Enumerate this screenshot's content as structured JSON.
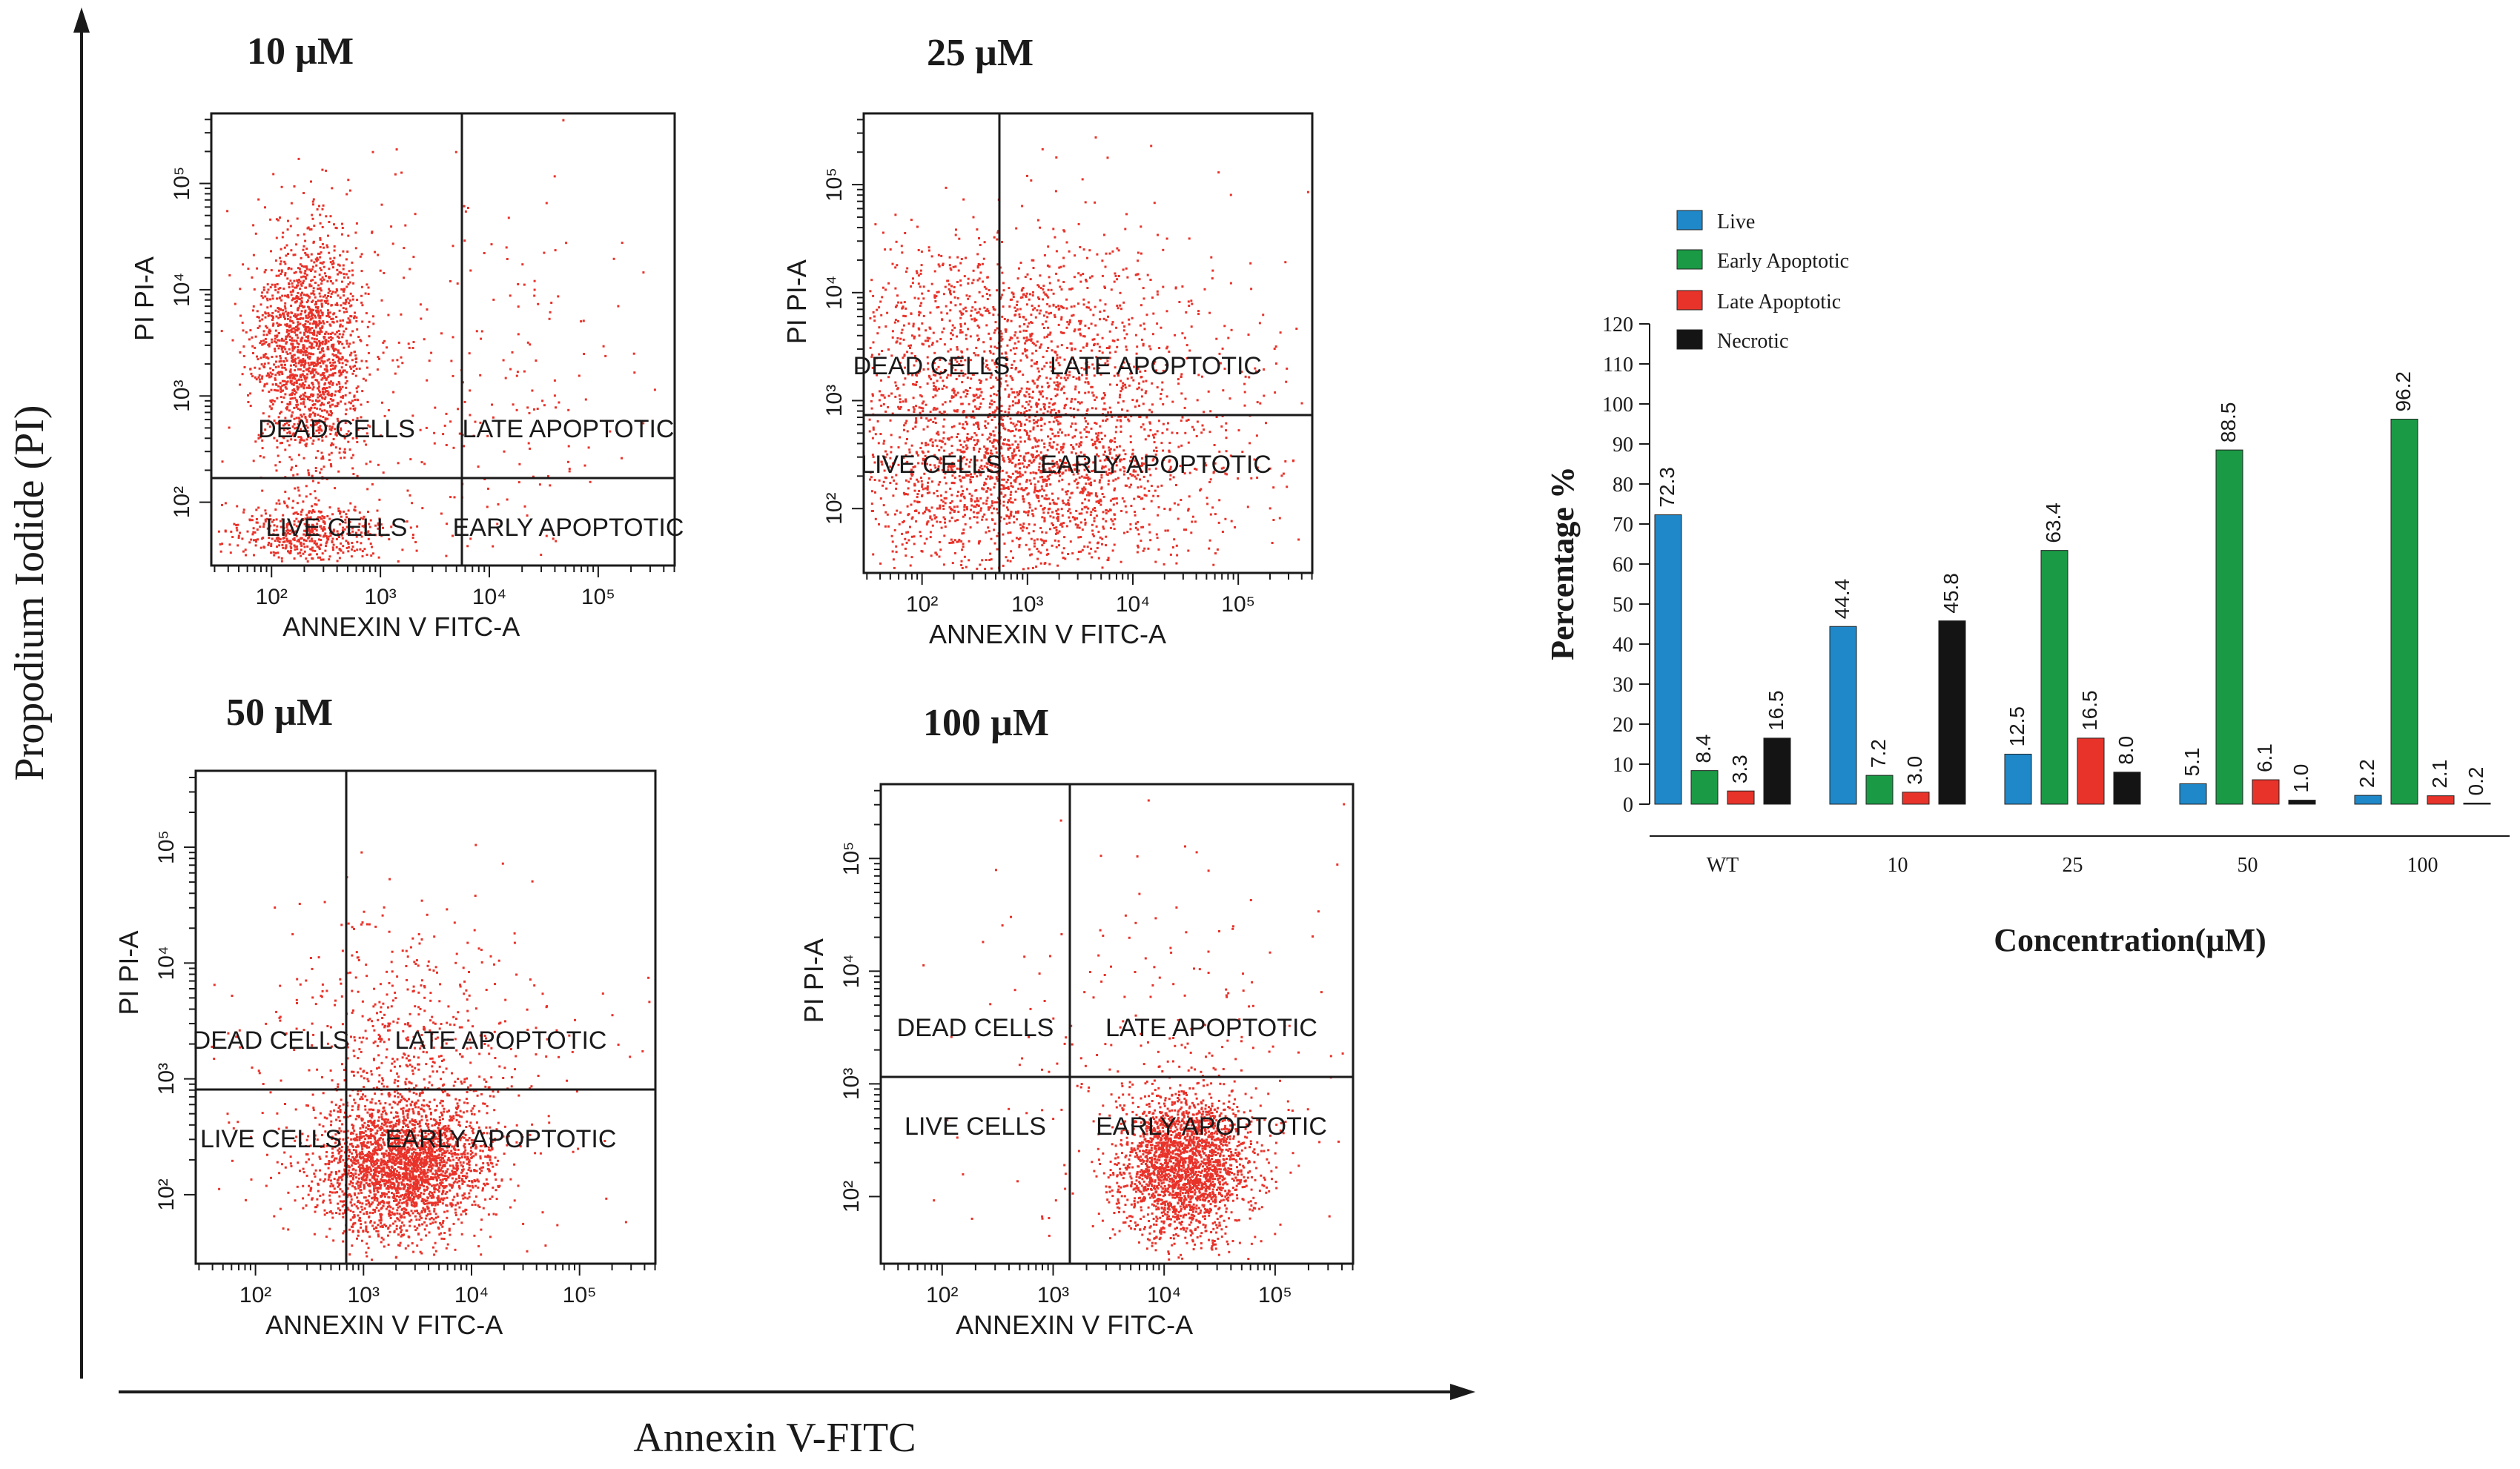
{
  "figure": {
    "y_axis_title": "Propodium Iodide (PI)",
    "x_axis_title": "Annexin V-FITC",
    "colors": {
      "dot": "#e8332a",
      "line": "#1a1a1a",
      "live": "#1f88c9",
      "early": "#1a9a45",
      "late": "#e8332a",
      "necrotic": "#141414"
    }
  },
  "flow_panels": [
    {
      "title": "10 µM",
      "x_label": "ANNEXIN V FITC-A",
      "y_label": "PI PI-A",
      "quadrants": [
        "DEAD CELLS",
        "LATE APOPTOTIC",
        "LIVE CELLS",
        "EARLY APOPTOTIC"
      ],
      "x_ticks": [
        "10²",
        "10³",
        "10⁴",
        "10⁵"
      ],
      "y_ticks": [
        "10²",
        "10³",
        "10⁴",
        "10⁵"
      ]
    },
    {
      "title": "25 µM",
      "x_label": "ANNEXIN V FITC-A",
      "y_label": "PI PI-A",
      "quadrants": [
        "DEAD CELLS",
        "LATE APOPTOTIC",
        "LIVE CELLS",
        "EARLY APOPTOTIC"
      ],
      "x_ticks": [
        "10²",
        "10³",
        "10⁴",
        "10⁵"
      ],
      "y_ticks": [
        "10²",
        "10³",
        "10⁴",
        "10⁵"
      ]
    },
    {
      "title": "50 µM",
      "x_label": "ANNEXIN V FITC-A",
      "y_label": "PI PI-A",
      "quadrants": [
        "DEAD CELLS",
        "LATE APOPTOTIC",
        "LIVE CELLS",
        "EARLY APOPTOTIC"
      ],
      "x_ticks": [
        "10²",
        "10³",
        "10⁴",
        "10⁵"
      ],
      "y_ticks": [
        "10²",
        "10³",
        "10⁴",
        "10⁵"
      ]
    },
    {
      "title": "100 µM",
      "x_label": "ANNEXIN V FITC-A",
      "y_label": "PI PI-A",
      "quadrants": [
        "DEAD CELLS",
        "LATE APOPTOTIC",
        "LIVE CELLS",
        "EARLY APOPTOTIC"
      ],
      "x_ticks": [
        "10²",
        "10³",
        "10⁴",
        "10⁵"
      ],
      "y_ticks": [
        "10²",
        "10³",
        "10⁴",
        "10⁵"
      ]
    }
  ],
  "chart_data": {
    "type": "bar",
    "title": "",
    "xlabel": "Concentration(µM)",
    "ylabel": "Percentage %",
    "ylim": [
      0,
      120
    ],
    "ytick_step": 10,
    "grid": false,
    "legend_position": "top-left",
    "categories": [
      "WT",
      "10",
      "25",
      "50",
      "100"
    ],
    "series": [
      {
        "name": "Live",
        "values": [
          72.3,
          44.4,
          12.5,
          5.1,
          2.2
        ],
        "labels": [
          "72.3",
          "44.4",
          "12.5",
          "5.1",
          "2.2"
        ]
      },
      {
        "name": "Early Apoptotic",
        "values": [
          8.4,
          7.2,
          63.4,
          88.5,
          96.2
        ],
        "labels": [
          "8.4",
          "7.2",
          "63.4",
          "88.5",
          "96.2"
        ]
      },
      {
        "name": "Late Apoptotic",
        "values": [
          3.3,
          3.0,
          16.5,
          6.1,
          2.1
        ],
        "labels": [
          "3.3",
          "3.0",
          "16.5",
          "6.1",
          "2.1"
        ]
      },
      {
        "name": "Necrotic",
        "values": [
          16.5,
          45.8,
          8.0,
          1.0,
          0.2
        ],
        "labels": [
          "16.5",
          "45.8",
          "8.0",
          "1.0",
          "0.2"
        ]
      }
    ]
  }
}
